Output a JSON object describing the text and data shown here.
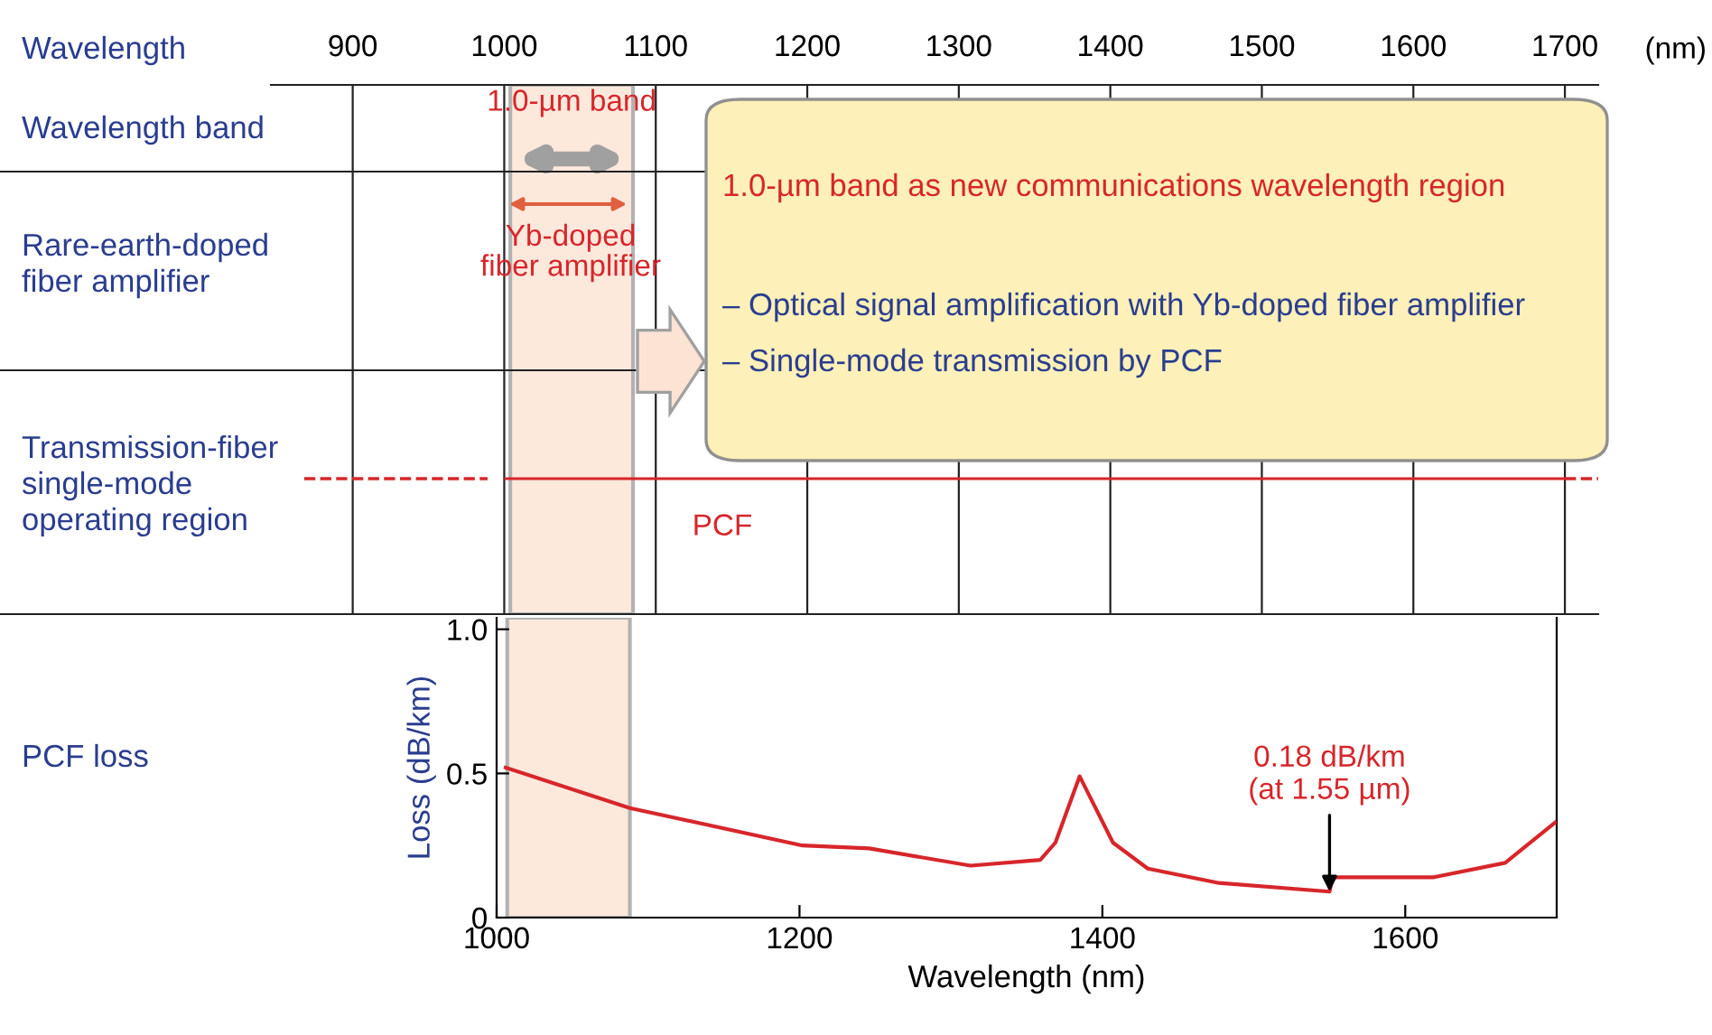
{
  "chart_data": [
    {
      "type": "bar",
      "orientation": "horizontal",
      "categories": [
        null
      ],
      "base": [
        1000
      ],
      "values": [
        700
      ],
      "colors": [
        "#d7262b"
      ],
      "xlim": [
        846,
        1722
      ],
      "xticks": [
        900,
        1000,
        1100,
        1200,
        1300,
        1400,
        1500,
        1600,
        1700
      ],
      "grid": "x",
      "bands": [
        {
          "axis": "x",
          "from": 1004,
          "to": 1085,
          "label": "1.0-µm band",
          "color": "#fde3d4"
        }
      ],
      "annotations": [
        "Wavelength",
        "Wavelength band",
        "Rare-earth-doped\nfiber amplifier",
        "Transmission-fiber\nsingle-mode\noperating region",
        "(nm)",
        "Yb-doped\nfiber amplifier",
        "PCF",
        "1.0-µm band as new communications wavelength region",
        "– Optical signal amplification with Yb-doped fiber amplifier",
        "– Single-mode transmission by PCF"
      ]
    },
    {
      "type": "line",
      "xlabel": "Wavelength (nm)",
      "ylabel": "Loss (dB/km)",
      "x": [
        1006,
        1088,
        1202,
        1246,
        1313,
        1359,
        1369,
        1385,
        1407,
        1430,
        1477,
        1550,
        1552,
        1619,
        1666,
        1699
      ],
      "series": [
        {
          "color": "#d7262b",
          "values": [
            0.52,
            0.38,
            0.25,
            0.24,
            0.18,
            0.2,
            0.26,
            0.49,
            0.26,
            0.17,
            0.12,
            0.09,
            0.14,
            0.14,
            0.19,
            0.33
          ]
        }
      ],
      "xlim": [
        1000,
        1700
      ],
      "xticks": [
        1000,
        1200,
        1400,
        1600
      ],
      "ylim": [
        0,
        1.04
      ],
      "yticks": [
        0,
        0.5,
        {
          "value": 1,
          "label": "1.0"
        }
      ],
      "grid": false,
      "marker": "none",
      "line_style": "solid",
      "bands": [
        {
          "axis": "x",
          "from": 1007,
          "to": 1088,
          "color": "#fde3d4"
        }
      ],
      "annotations": [
        "PCF loss",
        {
          "text": "0.18 dB/km\n(at 1.55 µm)",
          "x": 1550,
          "y": 0.09
        }
      ]
    }
  ]
}
